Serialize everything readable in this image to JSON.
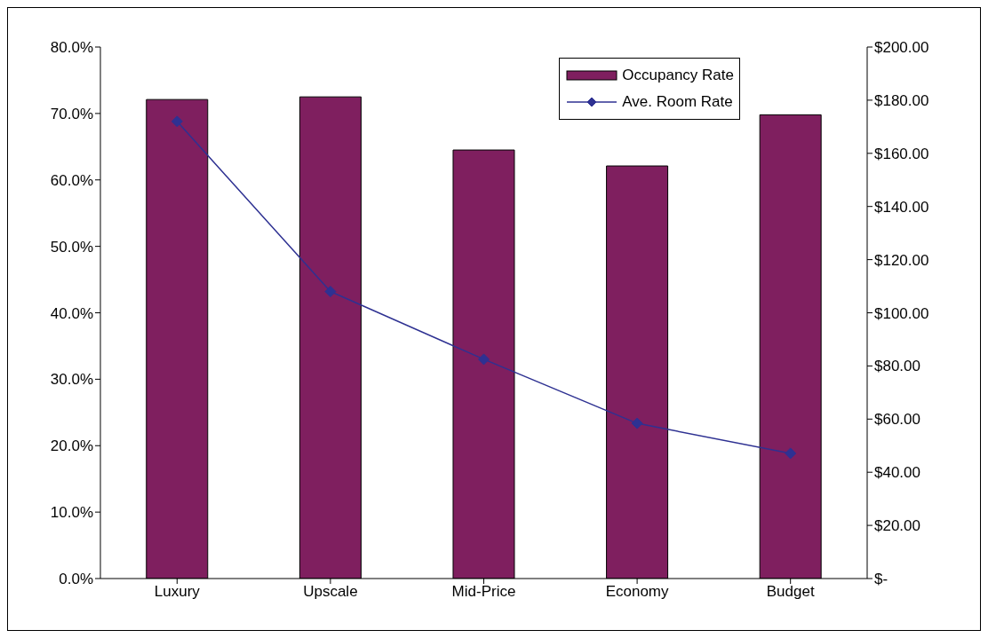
{
  "chart_data": {
    "type": "bar",
    "categories": [
      "Luxury",
      "Upscale",
      "Mid-Price",
      "Economy",
      "Budget"
    ],
    "series": [
      {
        "name": "Occupancy Rate",
        "color": "#7f1f5f",
        "values": [
          72.1,
          72.5,
          64.5,
          62.1,
          69.8
        ]
      },
      {
        "name": "Ave. Room Rate",
        "type": "line",
        "axis": "y2",
        "color": "#2e3192",
        "values": [
          172,
          108,
          82.5,
          58.4,
          47.1
        ]
      }
    ],
    "ylim": [
      0,
      80
    ],
    "yticks": [
      {
        "value": 0,
        "label": "0.0%"
      },
      {
        "value": 10,
        "label": "10.0%"
      },
      {
        "value": 20,
        "label": "20.0%"
      },
      {
        "value": 30,
        "label": "30.0%"
      },
      {
        "value": 40,
        "label": "40.0%"
      },
      {
        "value": 50,
        "label": "50.0%"
      },
      {
        "value": 60,
        "label": "60.0%"
      },
      {
        "value": 70,
        "label": "70.0%"
      },
      {
        "value": 80,
        "label": "80.0%"
      }
    ],
    "y2lim": [
      0,
      200
    ],
    "y2ticks": [
      {
        "value": 0,
        "label": "$-"
      },
      {
        "value": 20,
        "label": "$20.00"
      },
      {
        "value": 40,
        "label": "$40.00"
      },
      {
        "value": 60,
        "label": "$60.00"
      },
      {
        "value": 80,
        "label": "$80.00"
      },
      {
        "value": 100,
        "label": "$100.00"
      },
      {
        "value": 120,
        "label": "$120.00"
      },
      {
        "value": 140,
        "label": "$140.00"
      },
      {
        "value": 160,
        "label": "$160.00"
      },
      {
        "value": 180,
        "label": "$180.00"
      },
      {
        "value": 200,
        "label": "$200.00"
      }
    ],
    "legend": "top right",
    "marker": "diamond"
  }
}
